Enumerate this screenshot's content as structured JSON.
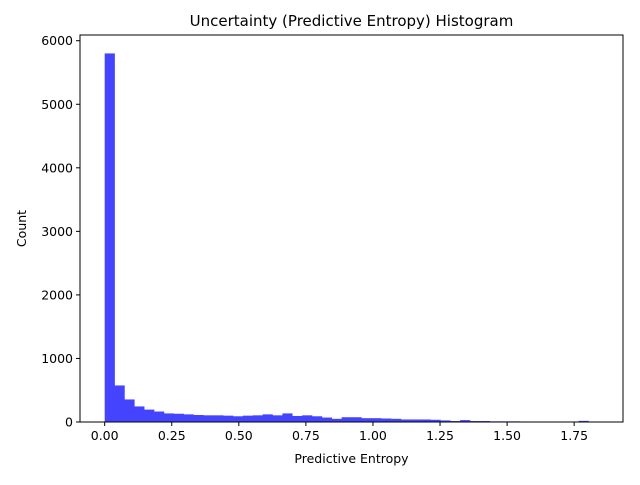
{
  "chart_data": {
    "type": "bar",
    "title": "Uncertainty (Predictive Entropy) Histogram",
    "xlabel": "Predictive Entropy",
    "ylabel": "Count",
    "xlim": [
      -0.092,
      1.932
    ],
    "ylim": [
      0,
      6090
    ],
    "x_ticks": [
      0.0,
      0.25,
      0.5,
      0.75,
      1.0,
      1.25,
      1.5,
      1.75
    ],
    "x_tick_labels": [
      "0.00",
      "0.25",
      "0.50",
      "0.75",
      "1.00",
      "1.25",
      "1.50",
      "1.75"
    ],
    "y_ticks": [
      0,
      1000,
      2000,
      3000,
      4000,
      5000,
      6000
    ],
    "y_tick_labels": [
      "0",
      "1000",
      "2000",
      "3000",
      "4000",
      "5000",
      "6000"
    ],
    "bins": 50,
    "bin_range": [
      0.0,
      1.84
    ],
    "values": [
      5800,
      575,
      355,
      245,
      195,
      165,
      135,
      130,
      120,
      110,
      105,
      105,
      100,
      90,
      100,
      105,
      120,
      105,
      135,
      95,
      105,
      90,
      70,
      50,
      75,
      75,
      60,
      60,
      55,
      50,
      40,
      40,
      40,
      35,
      25,
      15,
      30,
      15,
      15,
      10,
      10,
      10,
      8,
      7,
      6,
      5,
      5,
      3,
      18,
      8
    ],
    "color": "#4444ff",
    "grid": false,
    "legend": "none"
  }
}
